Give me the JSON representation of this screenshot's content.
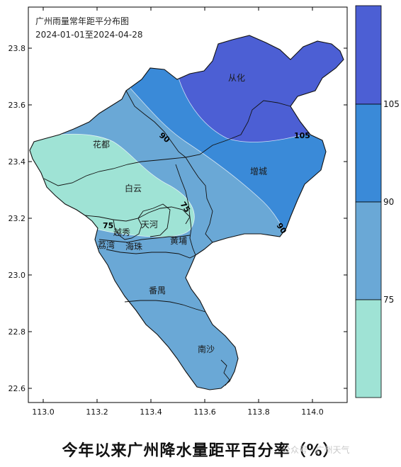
{
  "map": {
    "title_line1": "广州雨量常年距平分布图",
    "title_line2": "2024-01-01至2024-04-28",
    "x_ticks": [
      "113.0",
      "113.2",
      "113.4",
      "113.6",
      "113.8",
      "114.0"
    ],
    "y_ticks": [
      "23.8",
      "23.6",
      "23.4",
      "23.2",
      "23.0",
      "22.8",
      "22.6"
    ],
    "districts": {
      "conghua": "从化",
      "huadu": "花都",
      "zengcheng": "增城",
      "baiyun": "白云",
      "tianhe": "天河",
      "yuexiu": "越秀",
      "liwan": "荔湾",
      "haizhu": "海珠",
      "huangpu": "黄埔",
      "panyu": "番禺",
      "nansha": "南沙"
    },
    "contours": [
      "105",
      "90",
      "90",
      "75",
      "75"
    ]
  },
  "legend": {
    "labels": [
      "105",
      "90",
      "75"
    ],
    "colors": [
      "#4c5fd4",
      "#3a8ad8",
      "#6aa8d6",
      "#9fe3d5"
    ]
  },
  "caption": "今年以来广州降水量距平百分率（%）",
  "watermark": "公众号 · 广州天气"
}
